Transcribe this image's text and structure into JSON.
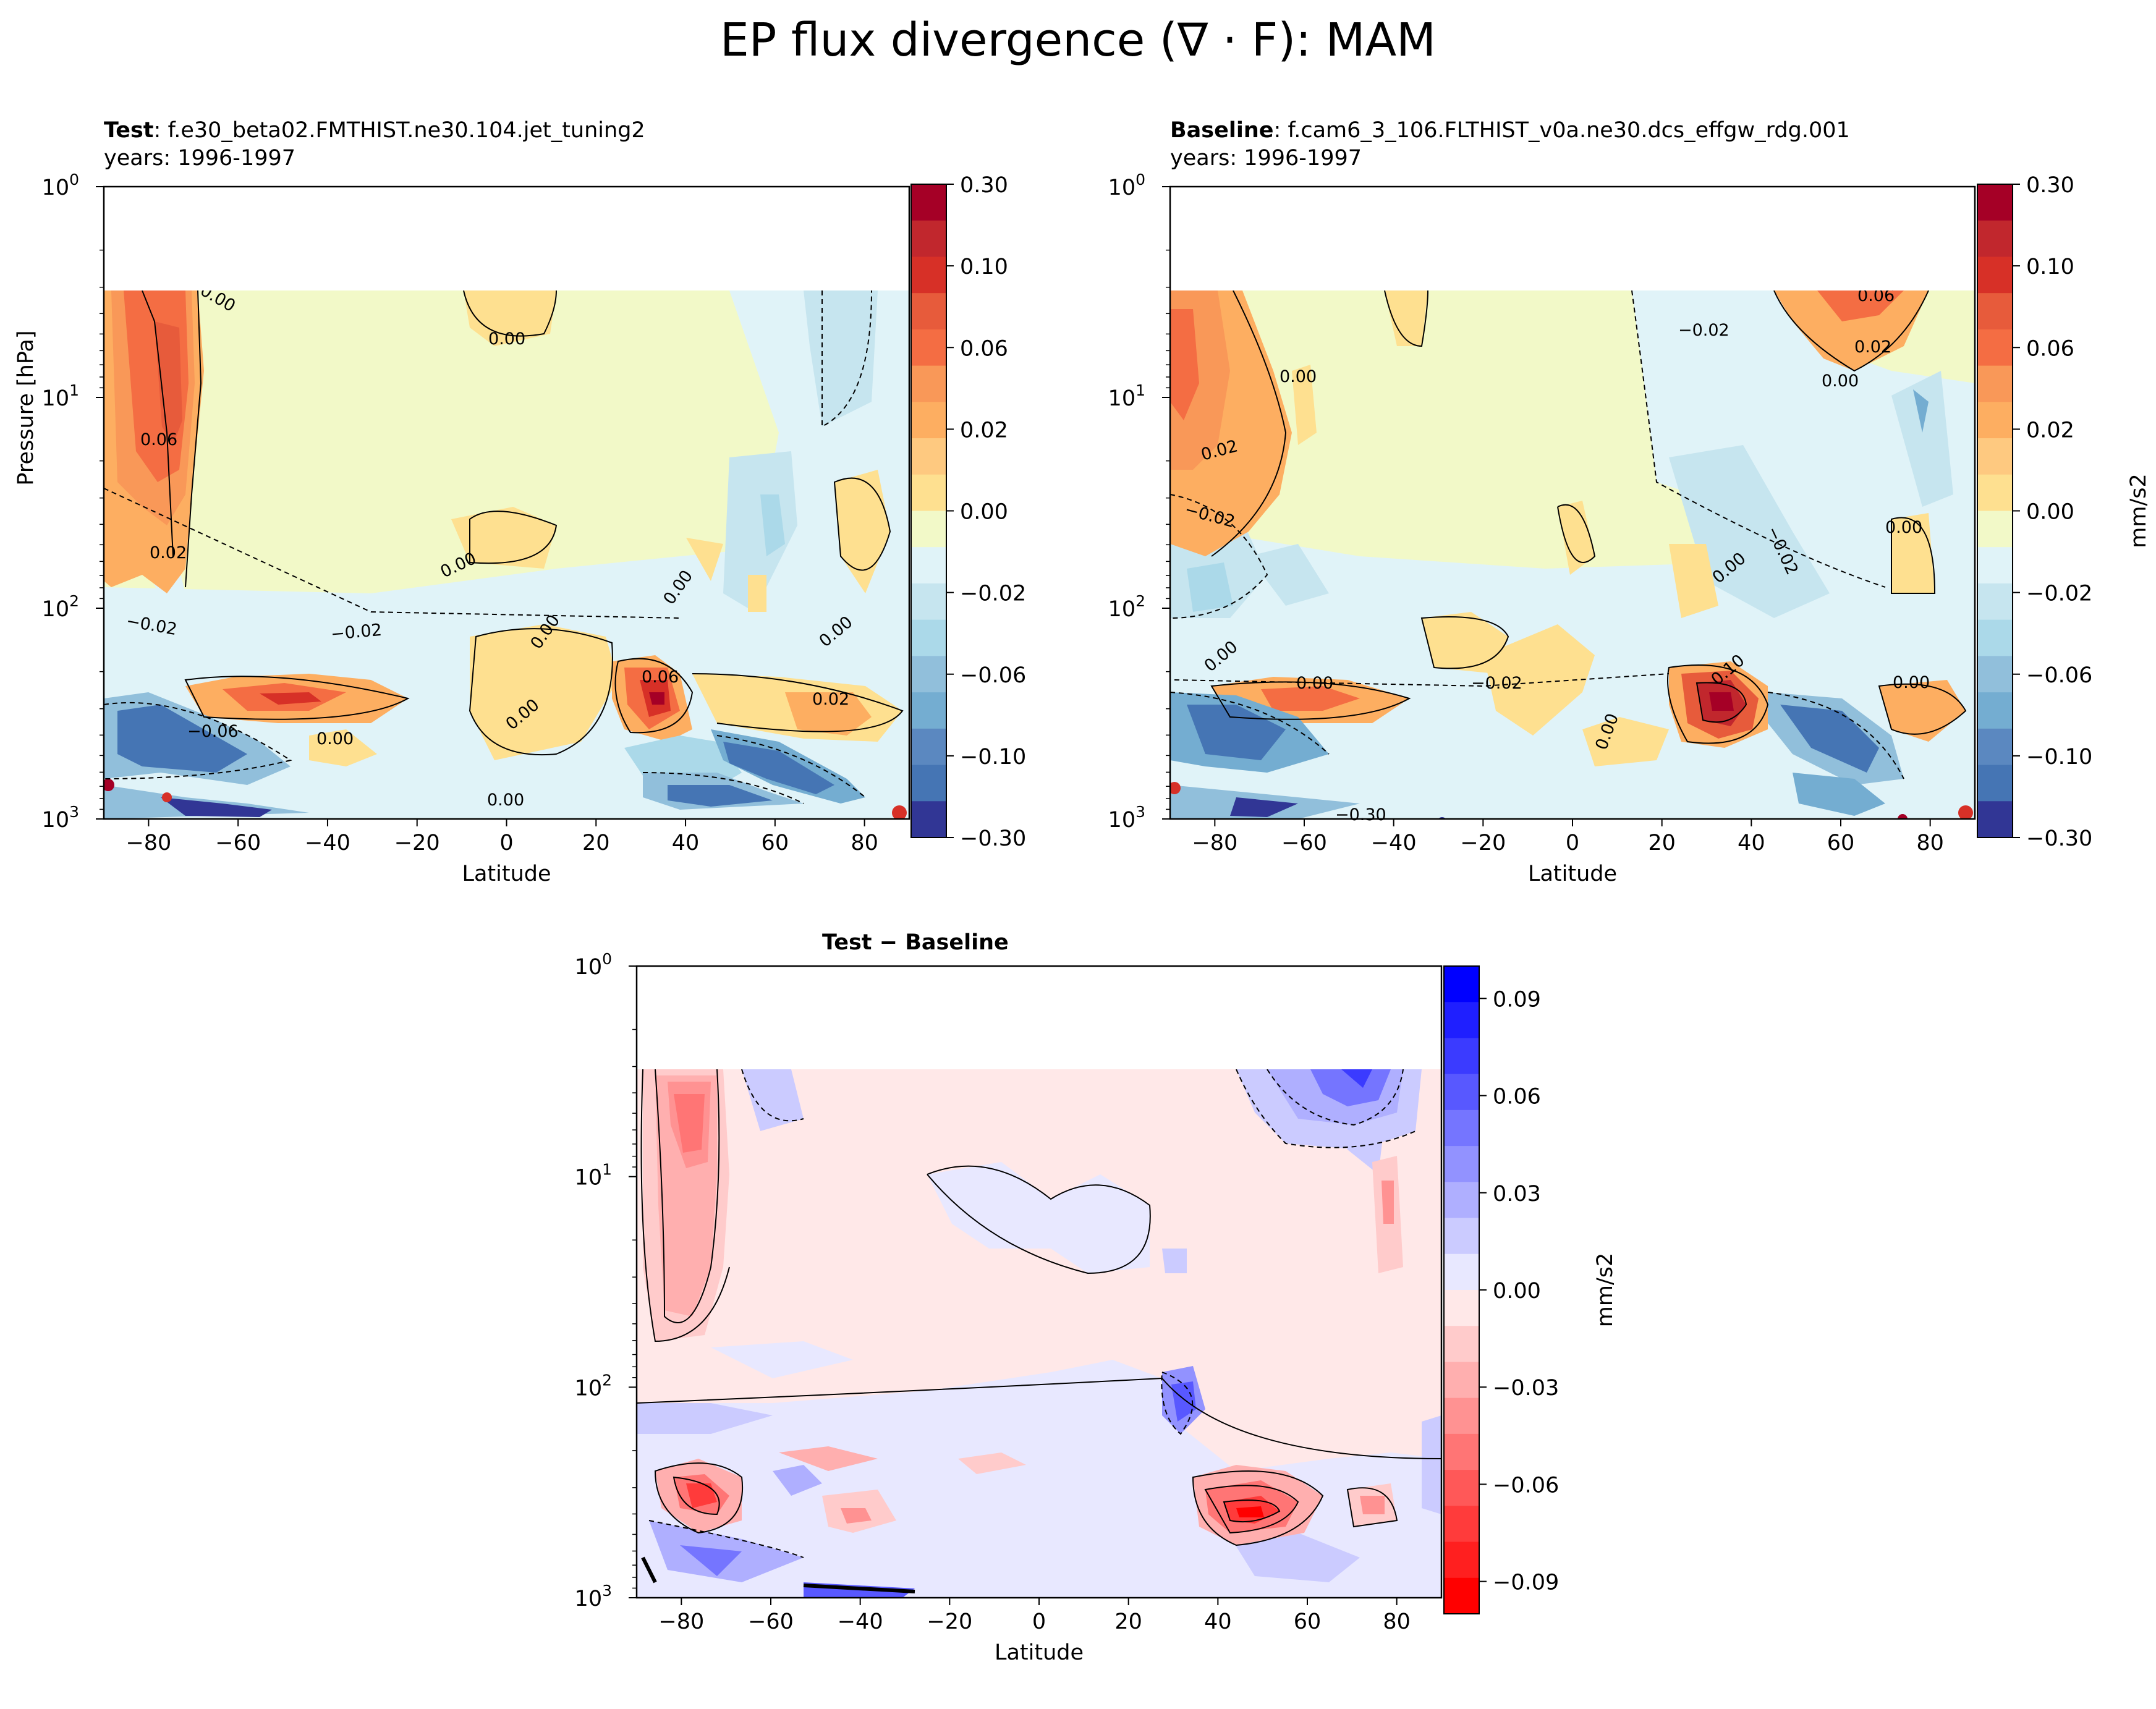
{
  "figure": {
    "title": "EP flux divergence (∇ · F): MAM"
  },
  "panels": {
    "test": {
      "label": "Test",
      "case": ": f.e30_beta02.FMTHIST.ne30.104.jet_tuning2",
      "years": "years: 1996-1997"
    },
    "baseline": {
      "label": "Baseline",
      "case": ": f.cam6_3_106.FLTHIST_v0a.ne30.dcs_effgw_rdg.001",
      "years": "years: 1996-1997"
    },
    "diff": {
      "title": "Test − Baseline"
    }
  },
  "chart_data": [
    {
      "id": "test",
      "type": "contourf",
      "title": "Test : f.e30_beta02.FMTHIST.ne30.104.jet_tuning2",
      "xlabel": "Latitude",
      "ylabel": "Pressure [hPa]",
      "x_ticks": [
        -80,
        -60,
        -40,
        -20,
        0,
        20,
        40,
        60,
        80
      ],
      "xlim": [
        -90,
        90
      ],
      "ylim": [
        1000,
        1
      ],
      "y_ticks": [
        "10^0",
        "10^1",
        "10^2",
        "10^3"
      ],
      "data_top_hPa": 3,
      "colorbar": {
        "label": "",
        "ticks": [
          "0.30",
          "0.10",
          "0.06",
          "0.02",
          "0.00",
          "−0.02",
          "−0.06",
          "−0.10",
          "−0.30"
        ],
        "colors": [
          "#a50026",
          "#c1272d",
          "#d73027",
          "#e75b3b",
          "#f46d43",
          "#f99858",
          "#fdae61",
          "#fec980",
          "#fee090",
          "#f2f9c8",
          "#e0f3f8",
          "#c6e5ef",
          "#abd9e9",
          "#91bfdb",
          "#74add1",
          "#5b88c0",
          "#4575b4",
          "#313695"
        ]
      },
      "contour_labels": [
        "0.00",
        "0.00",
        "0.06",
        "0.02",
        "0.00",
        "0.00",
        "0.00",
        "−0.02",
        "0.00",
        "−0.02",
        "0.00",
        "−0.06",
        "0.06",
        "0.02",
        "0.00",
        "0.00"
      ]
    },
    {
      "id": "baseline",
      "type": "contourf",
      "title": "Baseline : f.cam6_3_106.FLTHIST_v0a.ne30.dcs_effgw_rdg.001",
      "xlabel": "Latitude",
      "x_ticks": [
        -80,
        -60,
        -40,
        -20,
        0,
        20,
        40,
        60,
        80
      ],
      "xlim": [
        -90,
        90
      ],
      "ylim": [
        1000,
        1
      ],
      "y_ticks": [
        "10^0",
        "10^1",
        "10^2",
        "10^3"
      ],
      "data_top_hPa": 3,
      "colorbar": {
        "label": "mm/s2",
        "ticks": [
          "0.30",
          "0.10",
          "0.06",
          "0.02",
          "0.00",
          "−0.02",
          "−0.06",
          "−0.10",
          "−0.30"
        ]
      },
      "contour_labels": [
        "0.06",
        "−0.02",
        "0.02",
        "0.00",
        "0.00",
        "0.02",
        "−0.02",
        "0.00",
        "−0.02",
        "0.00",
        "0.00",
        "0.00",
        "−0.02",
        "0.00",
        "0.10",
        "0.00",
        "−0.30"
      ]
    },
    {
      "id": "diff",
      "type": "contourf",
      "title": "Test − Baseline",
      "xlabel": "Latitude",
      "x_ticks": [
        -80,
        -60,
        -40,
        -20,
        0,
        20,
        40,
        60,
        80
      ],
      "xlim": [
        -90,
        90
      ],
      "ylim": [
        1000,
        1
      ],
      "y_ticks": [
        "10^0",
        "10^1",
        "10^2",
        "10^3"
      ],
      "data_top_hPa": 3,
      "colorbar": {
        "label": "mm/s2",
        "ticks": [
          "0.09",
          "0.06",
          "0.03",
          "0.00",
          "−0.03",
          "−0.06",
          "−0.09"
        ],
        "range": [
          -0.1,
          0.1
        ],
        "colors": [
          "#0000ff",
          "#1f1fff",
          "#3b3bff",
          "#5858ff",
          "#7575ff",
          "#9292ff",
          "#afafff",
          "#cbcbff",
          "#e8e8ff",
          "#ffe8e8",
          "#ffcbcb",
          "#ffafaf",
          "#ff9292",
          "#ff7575",
          "#ff5858",
          "#ff3b3b",
          "#ff1f1f",
          "#ff0000"
        ]
      }
    }
  ]
}
